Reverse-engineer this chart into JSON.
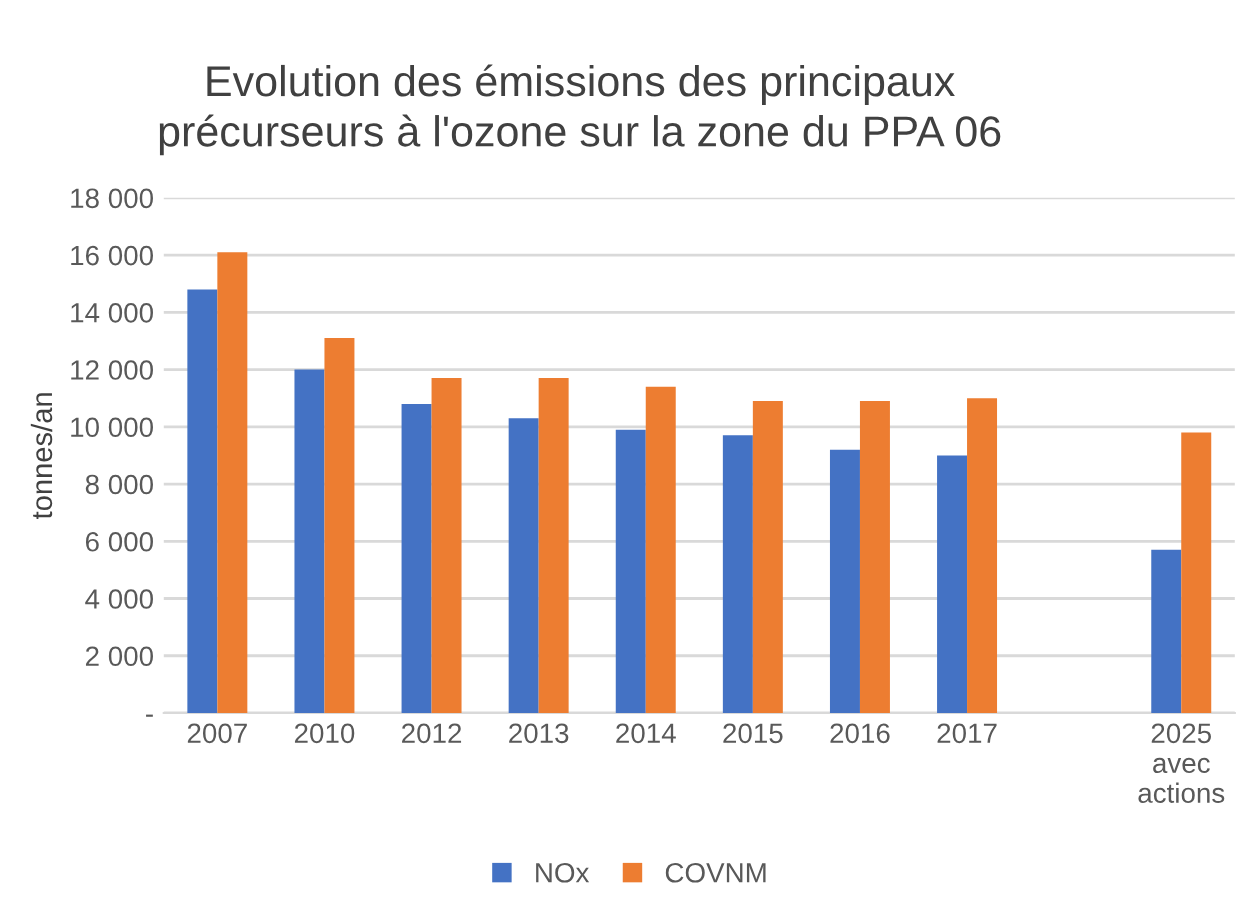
{
  "chart_data": {
    "type": "bar",
    "title": "Evolution des émissions des principaux\nprécurseurs à l'ozone sur la zone du PPA 06",
    "ylabel": "tonnes/an",
    "categories": [
      "2007",
      "2010",
      "2012",
      "2013",
      "2014",
      "2015",
      "2016",
      "2017",
      null,
      "2025\navec\nactions"
    ],
    "series": [
      {
        "name": "NOx",
        "color": "#4472c4",
        "values": [
          14800,
          12000,
          10800,
          10300,
          9900,
          9700,
          9200,
          9000,
          null,
          5700
        ]
      },
      {
        "name": "COVNM",
        "color": "#ed7d31",
        "values": [
          16100,
          13100,
          11700,
          11700,
          11400,
          10900,
          10900,
          11000,
          null,
          9800
        ]
      }
    ],
    "ylim": [
      0,
      18000
    ],
    "yticks": [
      {
        "value": 0,
        "label": "-"
      },
      {
        "value": 2000,
        "label": "2 000"
      },
      {
        "value": 4000,
        "label": "4 000"
      },
      {
        "value": 6000,
        "label": "6 000"
      },
      {
        "value": 8000,
        "label": "8 000"
      },
      {
        "value": 10000,
        "label": "10 000"
      },
      {
        "value": 12000,
        "label": "12 000"
      },
      {
        "value": 14000,
        "label": "14 000"
      },
      {
        "value": 16000,
        "label": "16 000"
      },
      {
        "value": 18000,
        "label": "18 000"
      }
    ],
    "grid": "y",
    "legend": "bottom"
  }
}
